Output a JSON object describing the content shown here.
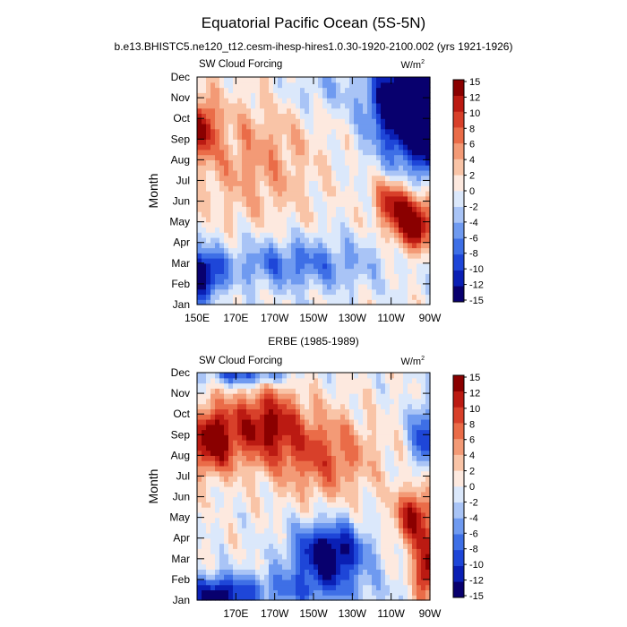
{
  "title": "Equatorial Pacific Ocean (5S-5N)",
  "subtitle": "b.e13.BHISTC5.ne120_t12.cesm-ihesp-hires1.0.30-1920-2100.002 (yrs 1921-1926)",
  "colors": {
    "palette": [
      "#08006e",
      "#0a1fb4",
      "#1e46d8",
      "#3e6fe6",
      "#6f9af0",
      "#a9c4f6",
      "#dbe8fb",
      "#fde9df",
      "#f9c4a7",
      "#f39a76",
      "#ea6c48",
      "#d8402a",
      "#bb1a12",
      "#8a0000"
    ]
  },
  "chart_data": [
    {
      "type": "heatmap",
      "panel_title": "",
      "left_label": "SW Cloud Forcing",
      "right_label": "W/m",
      "units_superscript": "2",
      "ylabel": "Month",
      "xlabel": "",
      "xlim": [
        150,
        270
      ],
      "x_ticks": [
        150,
        170,
        190,
        210,
        230,
        250,
        270
      ],
      "x_tick_labels": [
        "150E",
        "170E",
        "170W",
        "150W",
        "130W",
        "110W",
        "90W"
      ],
      "months": [
        "Jan",
        "Feb",
        "Mar",
        "Apr",
        "May",
        "Jun",
        "Jul",
        "Aug",
        "Sep",
        "Oct",
        "Nov",
        "Dec"
      ],
      "colorbar_levels": [
        -15,
        -12,
        -10,
        -8,
        -6,
        -4,
        -2,
        0,
        2,
        4,
        6,
        8,
        10,
        12,
        15
      ],
      "colorbar_labels": [
        "15",
        "12",
        "10",
        "8",
        "6",
        "4",
        "2",
        "0",
        "-2",
        "-4",
        "-6",
        "-8",
        "-10",
        "-12",
        "-15"
      ],
      "features": [
        {
          "lon": 270,
          "month": 9.5,
          "value": -16,
          "lon_spread": 22,
          "month_spread": 2.4
        },
        {
          "lon": 255,
          "month": 11,
          "value": -14,
          "lon_spread": 16,
          "month_spread": 1.8
        },
        {
          "lon": 262,
          "month": 5,
          "value": 16,
          "lon_spread": 10,
          "month_spread": 1.3
        },
        {
          "lon": 250,
          "month": 6,
          "value": 10,
          "lon_spread": 9,
          "month_spread": 1.2
        },
        {
          "lon": 152,
          "month": 2.4,
          "value": -14,
          "lon_spread": 10,
          "month_spread": 1.2
        },
        {
          "lon": 200,
          "month": 3,
          "value": -7,
          "lon_spread": 40,
          "month_spread": 1.2
        },
        {
          "lon": 153,
          "month": 9.6,
          "value": 11,
          "lon_spread": 7,
          "month_spread": 1.5
        },
        {
          "lon": 180,
          "month": 8,
          "value": 5,
          "lon_spread": 30,
          "month_spread": 3
        },
        {
          "lon": 215,
          "month": 11.3,
          "value": -3,
          "lon_spread": 20,
          "month_spread": 1
        }
      ]
    },
    {
      "type": "heatmap",
      "panel_title": "ERBE (1985-1989)",
      "left_label": "SW Cloud Forcing",
      "right_label": "W/m",
      "units_superscript": "2",
      "ylabel": "Month",
      "xlabel": "",
      "xlim": [
        150,
        270
      ],
      "x_ticks": [
        170,
        190,
        210,
        230,
        250,
        270
      ],
      "x_tick_labels": [
        "170E",
        "170W",
        "150W",
        "130W",
        "110W",
        "90W"
      ],
      "months": [
        "Jan",
        "Feb",
        "Mar",
        "Apr",
        "May",
        "Jun",
        "Jul",
        "Aug",
        "Sep",
        "Oct",
        "Nov",
        "Dec"
      ],
      "colorbar_levels": [
        -15,
        -12,
        -10,
        -8,
        -6,
        -4,
        -2,
        0,
        2,
        4,
        6,
        8,
        10,
        12,
        15
      ],
      "colorbar_labels": [
        "15",
        "12",
        "10",
        "8",
        "6",
        "4",
        "2",
        "0",
        "-2",
        "-4",
        "-6",
        "-8",
        "-10",
        "-12",
        "-15"
      ],
      "features": [
        {
          "lon": 218,
          "month": 3.3,
          "value": -15,
          "lon_spread": 18,
          "month_spread": 1.4
        },
        {
          "lon": 160,
          "month": 1.2,
          "value": -12,
          "lon_spread": 15,
          "month_spread": 0.9
        },
        {
          "lon": 200,
          "month": 1.5,
          "value": -6,
          "lon_spread": 40,
          "month_spread": 1
        },
        {
          "lon": 175,
          "month": 12,
          "value": -10,
          "lon_spread": 20,
          "month_spread": 0.6
        },
        {
          "lon": 268,
          "month": 9,
          "value": -10,
          "lon_spread": 8,
          "month_spread": 1.5
        },
        {
          "lon": 158,
          "month": 8.8,
          "value": 14,
          "lon_spread": 12,
          "month_spread": 1.6
        },
        {
          "lon": 185,
          "month": 9.5,
          "value": 12,
          "lon_spread": 18,
          "month_spread": 1.8
        },
        {
          "lon": 215,
          "month": 8,
          "value": 8,
          "lon_spread": 25,
          "month_spread": 2
        },
        {
          "lon": 262,
          "month": 5,
          "value": 12,
          "lon_spread": 10,
          "month_spread": 1.4
        },
        {
          "lon": 268,
          "month": 2.5,
          "value": 14,
          "lon_spread": 6,
          "month_spread": 1.5
        }
      ]
    }
  ]
}
